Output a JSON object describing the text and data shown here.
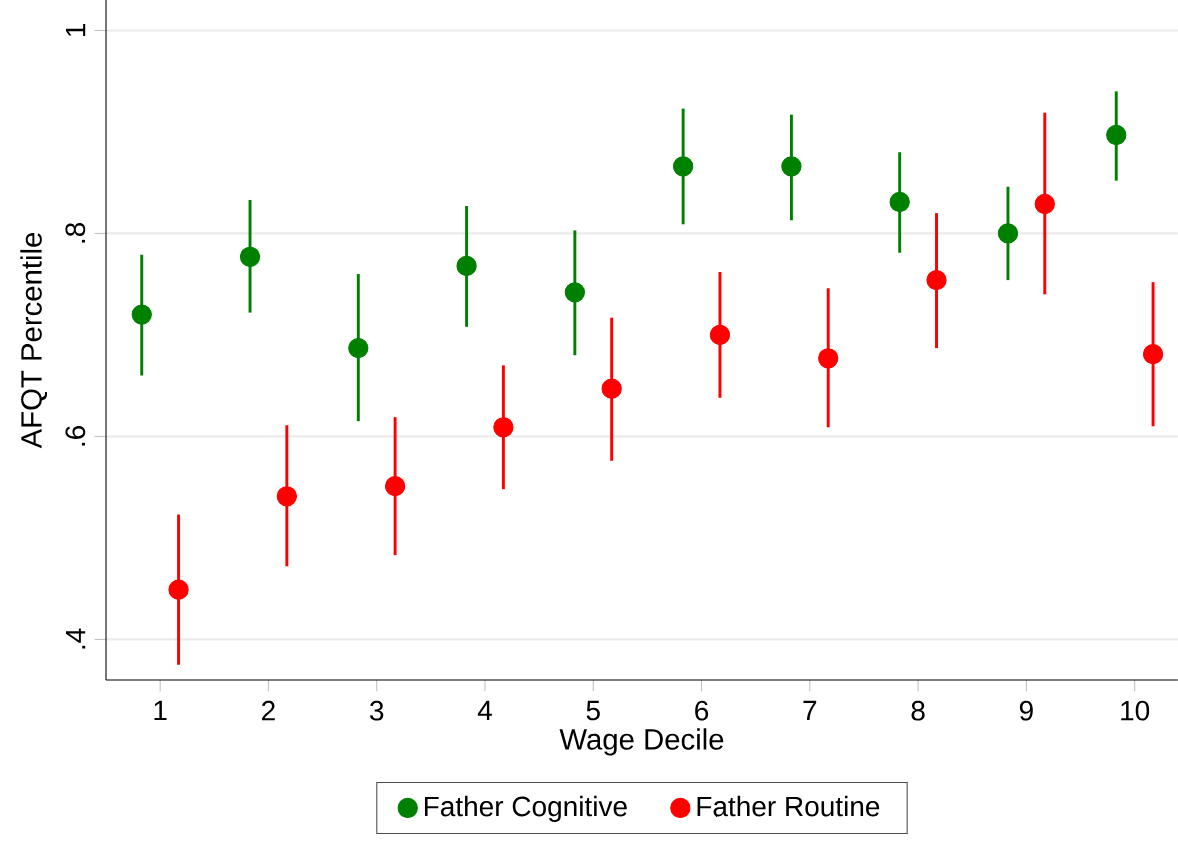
{
  "chart_data": {
    "type": "scatter",
    "xlabel": "Wage Decile",
    "ylabel": "AFQT Percentile",
    "xlim": [
      0.5,
      10.4
    ],
    "xticks": [
      1,
      2,
      3,
      4,
      5,
      6,
      7,
      8,
      9,
      10
    ],
    "ylim": [
      0.36,
      1.03
    ],
    "yticks": [
      {
        "value": 0.4,
        "label": ".4"
      },
      {
        "value": 0.6,
        "label": ".6"
      },
      {
        "value": 0.8,
        "label": ".8"
      },
      {
        "value": 1,
        "label": "1"
      }
    ],
    "grid": "y",
    "legend": "bottom",
    "marker": "circle",
    "series": [
      {
        "name": "Father Cognitive",
        "color": "#008000",
        "x": [
          0.83,
          1.83,
          2.83,
          3.83,
          4.83,
          5.83,
          6.83,
          7.83,
          8.83,
          9.83
        ],
        "values": [
          0.72,
          0.777,
          0.687,
          0.768,
          0.742,
          0.866,
          0.866,
          0.831,
          0.8,
          0.897
        ],
        "errors": [
          [
            0.66,
            0.779
          ],
          [
            0.722,
            0.833
          ],
          [
            0.615,
            0.76
          ],
          [
            0.708,
            0.827
          ],
          [
            0.68,
            0.803
          ],
          [
            0.809,
            0.923
          ],
          [
            0.813,
            0.917
          ],
          [
            0.781,
            0.88
          ],
          [
            0.754,
            0.846
          ],
          [
            0.852,
            0.94
          ]
        ]
      },
      {
        "name": "Father Routine",
        "color": "#ff0000",
        "x": [
          1.17,
          2.17,
          3.17,
          4.17,
          5.17,
          6.17,
          7.17,
          8.17,
          9.17,
          10.17
        ],
        "values": [
          0.449,
          0.541,
          0.551,
          0.609,
          0.647,
          0.7,
          0.677,
          0.754,
          0.829,
          0.681
        ],
        "errors": [
          [
            0.375,
            0.523
          ],
          [
            0.472,
            0.611
          ],
          [
            0.483,
            0.619
          ],
          [
            0.548,
            0.67
          ],
          [
            0.576,
            0.717
          ],
          [
            0.638,
            0.762
          ],
          [
            0.609,
            0.746
          ],
          [
            0.687,
            0.82
          ],
          [
            0.74,
            0.919
          ],
          [
            0.61,
            0.752
          ]
        ]
      }
    ]
  }
}
